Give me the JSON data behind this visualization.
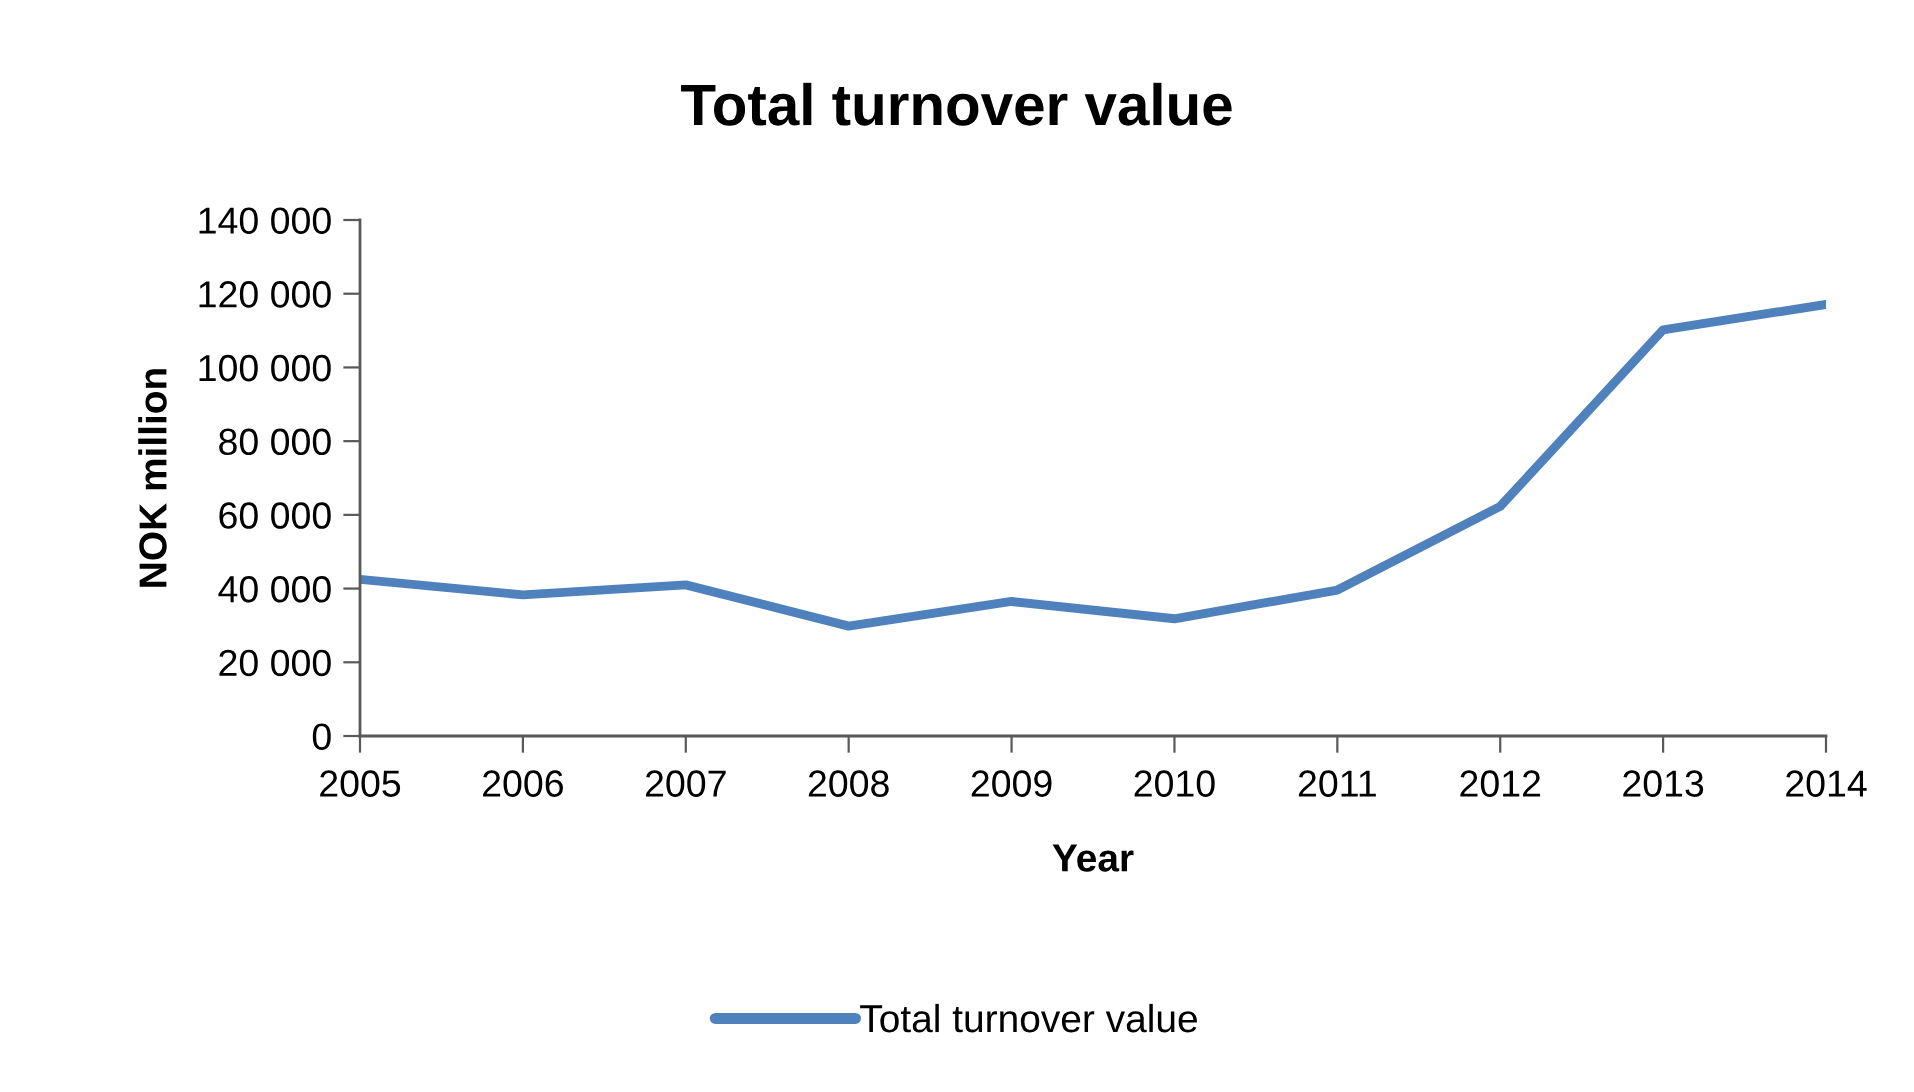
{
  "chart_data": {
    "type": "line",
    "title": "Total turnover value",
    "xlabel": "Year",
    "ylabel": "NOK million",
    "categories": [
      "2005",
      "2006",
      "2007",
      "2008",
      "2009",
      "2010",
      "2011",
      "2012",
      "2013",
      "2014"
    ],
    "series": [
      {
        "name": "Total turnover value",
        "color": "#4f81bd",
        "values": [
          42500,
          38300,
          41000,
          29800,
          36500,
          31800,
          39600,
          62300,
          110200,
          117100
        ]
      }
    ],
    "ylim": [
      0,
      140000
    ],
    "yticks": [
      0,
      {
        "value": 20000,
        "label": "20 000"
      },
      {
        "value": 40000,
        "label": "40 000"
      },
      {
        "value": 60000,
        "label": "60 000"
      },
      {
        "value": 80000,
        "label": "80 000"
      },
      {
        "value": 100000,
        "label": "100 000"
      },
      {
        "value": 120000,
        "label": "120 000"
      },
      {
        "value": 140000,
        "label": "140 000"
      }
    ],
    "grid": false,
    "legend": "bottom",
    "marker": "none",
    "line_style": "solid"
  }
}
